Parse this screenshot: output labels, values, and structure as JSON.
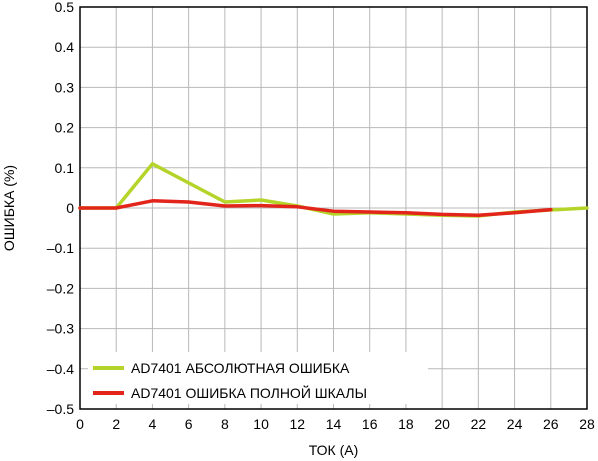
{
  "chart_data": {
    "type": "line",
    "title": "",
    "xlabel": "ТОК (А)",
    "ylabel": "ОШИБКА (%)",
    "xlim": [
      0,
      28
    ],
    "ylim": [
      -0.5,
      0.5
    ],
    "xticks": [
      0,
      2,
      4,
      6,
      8,
      10,
      12,
      14,
      16,
      18,
      20,
      22,
      24,
      26,
      28
    ],
    "yticks": [
      0.5,
      0.4,
      0.3,
      0.2,
      0.1,
      0,
      -0.1,
      -0.2,
      -0.3,
      -0.4,
      -0.5
    ],
    "xtick_labels": [
      "0",
      "2",
      "4",
      "6",
      "8",
      "10",
      "12",
      "14",
      "16",
      "18",
      "20",
      "22",
      "24",
      "26",
      "28"
    ],
    "ytick_labels": [
      "0.5",
      "0.4",
      "0.3",
      "0.2",
      "0.1",
      "0",
      "–0.1",
      "–0.2",
      "–0.3",
      "–0.4",
      "–0.5"
    ],
    "grid": true,
    "legend_position": "bottom-left",
    "series": [
      {
        "name": "AD7401 АБСОЛЮТНАЯ ОШИБКА",
        "color": "#b5d42a",
        "x": [
          0,
          2,
          4,
          8,
          10,
          12,
          14,
          16,
          18,
          20,
          22,
          24,
          26,
          28
        ],
        "y": [
          0,
          0,
          0.11,
          0.015,
          0.02,
          0.005,
          -0.015,
          -0.012,
          -0.015,
          -0.018,
          -0.02,
          -0.01,
          -0.005,
          0
        ]
      },
      {
        "name": "AD7401 ОШИБКА ПОЛНОЙ ШКАЛЫ",
        "color": "#e3241b",
        "x": [
          0,
          2,
          4,
          6,
          8,
          10,
          12,
          14,
          16,
          18,
          20,
          22,
          24,
          26
        ],
        "y": [
          0,
          0,
          0.018,
          0.015,
          0.005,
          0.006,
          0.003,
          -0.008,
          -0.01,
          -0.012,
          -0.016,
          -0.018,
          -0.012,
          -0.004
        ]
      }
    ]
  }
}
